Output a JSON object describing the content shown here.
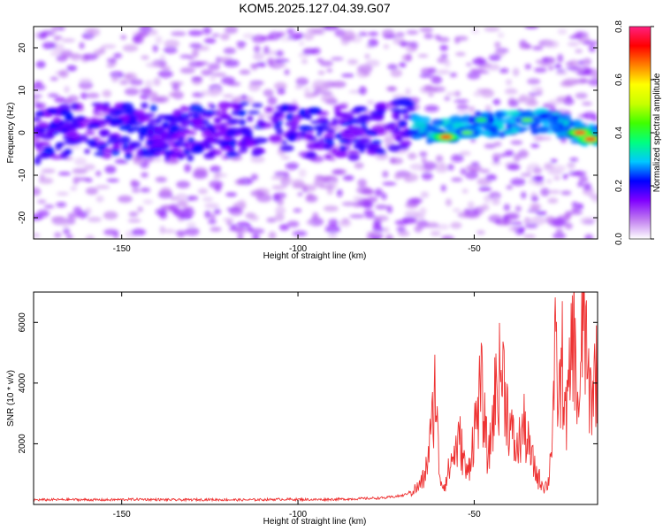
{
  "title": "KOM5.2025.127.04.39.G07",
  "chart_data": [
    {
      "type": "heatmap",
      "xlabel": "Height of straight line (km)",
      "ylabel": "Frequency (Hz)",
      "xlim": [
        -175,
        -15
      ],
      "ylim": [
        -25,
        25
      ],
      "xticks": [
        -150,
        -100,
        -50
      ],
      "xtick_labels": [
        "-150",
        "-100",
        "-50"
      ],
      "yticks": [
        20,
        10,
        0,
        -10,
        -20
      ],
      "ytick_labels": [
        "20",
        "10",
        "0",
        "-10",
        "-20"
      ],
      "colorbar": {
        "label": "Normalized spectral amplitude",
        "range": [
          0.0,
          0.8
        ],
        "ticks": [
          0.0,
          0.2,
          0.4,
          0.6,
          0.8
        ],
        "tick_labels": [
          "0.0",
          "0.2",
          "0.4",
          "0.6",
          "0.8"
        ],
        "colors": [
          "#ffffff",
          "#c07cf0",
          "#8000ff",
          "#0000ff",
          "#00c8ff",
          "#00ff80",
          "#40ff00",
          "#c8ff00",
          "#ffff00",
          "#ff8000",
          "#ff0000",
          "#ff2080"
        ]
      },
      "ridge": [
        {
          "x": -175,
          "f": -1.0
        },
        {
          "x": -160,
          "f": 1.0
        },
        {
          "x": -145,
          "f": 0.5
        },
        {
          "x": -130,
          "f": 0.0
        },
        {
          "x": -115,
          "f": 1.0
        },
        {
          "x": -100,
          "f": 0.5
        },
        {
          "x": -85,
          "f": 0.0
        },
        {
          "x": -70,
          "f": 2.0
        },
        {
          "x": -60,
          "f": 0.0
        },
        {
          "x": -50,
          "f": 2.0
        },
        {
          "x": -40,
          "f": 2.0
        },
        {
          "x": -30,
          "f": 3.0
        },
        {
          "x": -20,
          "f": 0.0
        },
        {
          "x": -15,
          "f": -1.5
        }
      ],
      "hotspots": [
        {
          "x": -58,
          "f": -1.0,
          "amp": 0.72
        },
        {
          "x": -52,
          "f": 0.0,
          "amp": 0.45
        },
        {
          "x": -48,
          "f": 3.0,
          "amp": 0.4
        },
        {
          "x": -35,
          "f": 3.0,
          "amp": 0.45
        },
        {
          "x": -20,
          "f": 0.0,
          "amp": 0.75
        },
        {
          "x": -17,
          "f": -1.5,
          "amp": 0.72
        }
      ]
    },
    {
      "type": "line",
      "xlabel": "Height of straight line (km)",
      "ylabel": "SNR (10 * v/v)",
      "xlim": [
        -175,
        -15
      ],
      "ylim": [
        0,
        7000
      ],
      "xticks": [
        -150,
        -100,
        -50
      ],
      "xtick_labels": [
        "-150",
        "-100",
        "-50"
      ],
      "yticks": [
        2000,
        4000,
        6000
      ],
      "ytick_labels": [
        "2000",
        "4000",
        "6000"
      ],
      "color": "#ee3333",
      "series": [
        {
          "x": [
            -175,
            -165,
            -155,
            -145,
            -135,
            -125,
            -115,
            -105,
            -95,
            -85,
            -75,
            -70,
            -66,
            -64,
            -62,
            -61,
            -60,
            -59,
            -58,
            -56,
            -54,
            -52,
            -50,
            -48,
            -46,
            -44,
            -42,
            -40,
            -38,
            -36,
            -34,
            -32,
            -30,
            -29,
            -28,
            -27,
            -26,
            -25,
            -24,
            -23,
            -22,
            -21,
            -20,
            -19,
            -18,
            -17,
            -16,
            -15
          ],
          "y": [
            150,
            160,
            150,
            170,
            150,
            160,
            150,
            170,
            160,
            180,
            220,
            300,
            550,
            900,
            2500,
            4100,
            1200,
            600,
            800,
            1600,
            2100,
            900,
            2400,
            3800,
            1400,
            3700,
            4500,
            2600,
            1700,
            2600,
            1600,
            900,
            600,
            700,
            2200,
            4800,
            3300,
            4700,
            2800,
            3800,
            6000,
            3900,
            3000,
            7000,
            4200,
            3600,
            4000,
            4900
          ]
        }
      ]
    }
  ]
}
